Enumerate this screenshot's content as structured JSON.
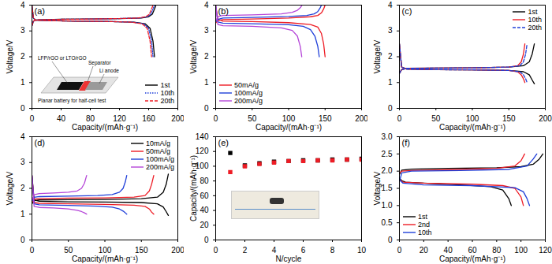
{
  "chart_data": [
    {
      "type": "line",
      "title": "(a)",
      "x_label": "Capacity/(mAh·g⁻¹)",
      "y_label": "Voltage/V",
      "xlim": [
        0,
        200
      ],
      "xticks": [
        0,
        40,
        80,
        120,
        160,
        200
      ],
      "ylim": [
        0,
        4
      ],
      "yticks": [
        0,
        1,
        2,
        3,
        4
      ],
      "legend": "bottom-right",
      "annotations": [
        "LFP/rGO or LTO/rGO",
        "Separator",
        "Li anode",
        "Planar battery for half-cell test"
      ],
      "series": [
        {
          "name": "1st",
          "color": "#000000",
          "line_style": "solid",
          "x": [
            0,
            2,
            5,
            10,
            40,
            80,
            120,
            150,
            160,
            165,
            168,
            170,
            null,
            0,
            2,
            5,
            20,
            60,
            100,
            140,
            155,
            162,
            166,
            168
          ],
          "values": [
            3.2,
            3.38,
            3.42,
            3.43,
            3.45,
            3.46,
            3.48,
            3.5,
            3.55,
            3.65,
            3.85,
            4.0,
            null,
            4.0,
            3.5,
            3.42,
            3.4,
            3.38,
            3.37,
            3.34,
            3.28,
            3.1,
            2.6,
            2.0
          ]
        },
        {
          "name": "10th",
          "color": "#1f3fd9",
          "line_style": "dotted",
          "x": [
            0,
            2,
            5,
            10,
            40,
            80,
            120,
            148,
            158,
            163,
            166,
            168,
            null,
            0,
            2,
            5,
            20,
            60,
            100,
            138,
            153,
            160,
            164,
            166
          ],
          "values": [
            3.2,
            3.38,
            3.42,
            3.43,
            3.45,
            3.46,
            3.48,
            3.5,
            3.55,
            3.65,
            3.85,
            4.0,
            null,
            4.0,
            3.5,
            3.42,
            3.4,
            3.38,
            3.37,
            3.34,
            3.28,
            3.1,
            2.6,
            2.0
          ]
        },
        {
          "name": "20th",
          "color": "#ee1c25",
          "line_style": "dashed",
          "x": [
            0,
            2,
            5,
            10,
            40,
            80,
            120,
            146,
            156,
            161,
            164,
            166,
            null,
            0,
            2,
            5,
            20,
            60,
            100,
            136,
            151,
            158,
            162,
            164
          ],
          "values": [
            3.2,
            3.38,
            3.42,
            3.43,
            3.45,
            3.46,
            3.48,
            3.5,
            3.55,
            3.65,
            3.85,
            4.0,
            null,
            4.0,
            3.5,
            3.42,
            3.4,
            3.38,
            3.37,
            3.34,
            3.28,
            3.1,
            2.6,
            2.0
          ]
        }
      ]
    },
    {
      "type": "line",
      "title": "(b)",
      "x_label": "Capacity/(mAh·g⁻¹)",
      "y_label": "Voltage/V",
      "xlim": [
        0,
        200
      ],
      "xticks": [
        0,
        50,
        100,
        150,
        200
      ],
      "ylim": [
        0,
        4
      ],
      "yticks": [
        0,
        1,
        2,
        3,
        4
      ],
      "legend": "bottom-left",
      "series": [
        {
          "name": "50mA/g",
          "color": "#ee1c25",
          "line_style": "solid",
          "x": [
            0,
            3,
            10,
            50,
            100,
            130,
            140,
            145,
            148,
            150,
            null,
            0,
            3,
            10,
            50,
            100,
            130,
            140,
            145,
            148,
            150
          ],
          "values": [
            3.3,
            3.4,
            3.44,
            3.46,
            3.5,
            3.55,
            3.6,
            3.7,
            3.85,
            4.0,
            null,
            4.0,
            3.45,
            3.38,
            3.36,
            3.32,
            3.25,
            3.15,
            2.9,
            2.5,
            2.0
          ]
        },
        {
          "name": "100mA/g",
          "color": "#1f3fd9",
          "line_style": "solid",
          "x": [
            0,
            3,
            10,
            50,
            100,
            125,
            135,
            140,
            143,
            145,
            null,
            0,
            3,
            10,
            50,
            100,
            120,
            130,
            136,
            140,
            142
          ],
          "values": [
            3.35,
            3.45,
            3.5,
            3.52,
            3.56,
            3.6,
            3.66,
            3.75,
            3.88,
            4.0,
            null,
            4.0,
            3.35,
            3.3,
            3.28,
            3.24,
            3.18,
            3.05,
            2.8,
            2.4,
            2.0
          ]
        },
        {
          "name": "200mA/g",
          "color": "#b545d8",
          "line_style": "solid",
          "x": [
            0,
            3,
            10,
            50,
            90,
            105,
            112,
            116,
            118,
            null,
            0,
            3,
            10,
            50,
            90,
            105,
            112,
            116,
            118
          ],
          "values": [
            3.4,
            3.55,
            3.6,
            3.62,
            3.66,
            3.72,
            3.8,
            3.9,
            3.98,
            null,
            4.0,
            3.25,
            3.2,
            3.18,
            3.12,
            3.02,
            2.8,
            2.4,
            2.0
          ]
        }
      ]
    },
    {
      "type": "line",
      "title": "(c)",
      "x_label": "Capacity/(mAh·g⁻¹)",
      "y_label": "Voltage/V",
      "xlim": [
        0,
        200
      ],
      "xticks": [
        0,
        50,
        100,
        150,
        200
      ],
      "ylim": [
        0,
        4
      ],
      "yticks": [
        0,
        1,
        2,
        3,
        4
      ],
      "legend": "top-right",
      "series": [
        {
          "name": "1st",
          "color": "#000000",
          "line_style": "solid",
          "x": [
            0,
            3,
            10,
            50,
            100,
            150,
            170,
            178,
            182,
            185,
            null,
            0,
            3,
            10,
            50,
            100,
            150,
            170,
            178,
            182,
            185
          ],
          "values": [
            1.35,
            1.5,
            1.55,
            1.56,
            1.57,
            1.6,
            1.65,
            1.8,
            2.1,
            2.5,
            null,
            2.5,
            1.6,
            1.52,
            1.5,
            1.49,
            1.47,
            1.42,
            1.3,
            1.1,
            0.95
          ]
        },
        {
          "name": "10th",
          "color": "#ee1c25",
          "line_style": "solid",
          "x": [
            0,
            3,
            10,
            50,
            100,
            150,
            162,
            167,
            170,
            172,
            null,
            0,
            3,
            10,
            50,
            100,
            150,
            162,
            167,
            170,
            172
          ],
          "values": [
            1.35,
            1.5,
            1.55,
            1.56,
            1.57,
            1.6,
            1.65,
            1.8,
            2.1,
            2.5,
            null,
            2.5,
            1.6,
            1.52,
            1.5,
            1.49,
            1.47,
            1.42,
            1.3,
            1.15,
            1.0
          ]
        },
        {
          "name": "20th",
          "color": "#1f3fd9",
          "line_style": "dashed",
          "x": [
            0,
            3,
            10,
            50,
            100,
            150,
            165,
            170,
            173,
            175,
            null,
            0,
            3,
            10,
            50,
            100,
            150,
            165,
            170,
            173,
            175
          ],
          "values": [
            1.35,
            1.5,
            1.55,
            1.56,
            1.57,
            1.6,
            1.65,
            1.8,
            2.1,
            2.5,
            null,
            2.5,
            1.6,
            1.52,
            1.5,
            1.49,
            1.47,
            1.42,
            1.3,
            1.15,
            1.0
          ]
        }
      ]
    },
    {
      "type": "line",
      "title": "(d)",
      "x_label": "Capacity/(mAh·g⁻¹)",
      "y_label": "Voltage/V",
      "xlim": [
        0,
        200
      ],
      "xticks": [
        0,
        50,
        100,
        150,
        200
      ],
      "ylim": [
        0,
        4
      ],
      "yticks": [
        0,
        1,
        2,
        3,
        4
      ],
      "legend": "top-right",
      "series": [
        {
          "name": "10mA/g",
          "color": "#000000",
          "line_style": "solid",
          "x": [
            0,
            3,
            10,
            50,
            100,
            150,
            172,
            180,
            184,
            187,
            null,
            0,
            3,
            10,
            50,
            100,
            150,
            172,
            180,
            184,
            187
          ],
          "values": [
            1.4,
            1.52,
            1.55,
            1.56,
            1.57,
            1.6,
            1.66,
            1.85,
            2.15,
            2.55,
            null,
            2.5,
            1.55,
            1.5,
            1.48,
            1.47,
            1.45,
            1.4,
            1.28,
            1.1,
            0.95
          ]
        },
        {
          "name": "50mA/g",
          "color": "#ee1c25",
          "line_style": "solid",
          "x": [
            0,
            3,
            10,
            50,
            100,
            140,
            155,
            161,
            164,
            167,
            null,
            0,
            3,
            10,
            50,
            100,
            140,
            155,
            161,
            164,
            167
          ],
          "values": [
            1.45,
            1.58,
            1.6,
            1.62,
            1.63,
            1.66,
            1.72,
            1.9,
            2.15,
            2.5,
            null,
            2.5,
            1.45,
            1.42,
            1.4,
            1.38,
            1.35,
            1.3,
            1.2,
            1.08,
            1.0
          ]
        },
        {
          "name": "100mA/g",
          "color": "#1f3fd9",
          "line_style": "solid",
          "x": [
            0,
            3,
            10,
            50,
            90,
            110,
            120,
            125,
            128,
            130,
            null,
            0,
            3,
            10,
            50,
            90,
            110,
            120,
            125,
            128,
            130
          ],
          "values": [
            1.5,
            1.65,
            1.68,
            1.7,
            1.72,
            1.76,
            1.85,
            2.0,
            2.25,
            2.5,
            null,
            2.5,
            1.4,
            1.36,
            1.34,
            1.31,
            1.27,
            1.2,
            1.12,
            1.05,
            1.0
          ]
        },
        {
          "name": "200mA/g",
          "color": "#b545d8",
          "line_style": "solid",
          "x": [
            0,
            3,
            10,
            30,
            50,
            62,
            68,
            72,
            74,
            75,
            null,
            0,
            3,
            10,
            30,
            50,
            62,
            68,
            72,
            74,
            75
          ],
          "values": [
            1.55,
            1.75,
            1.8,
            1.82,
            1.85,
            1.9,
            2.0,
            2.2,
            2.4,
            2.5,
            null,
            2.5,
            1.3,
            1.26,
            1.24,
            1.2,
            1.15,
            1.1,
            1.05,
            1.02,
            1.0
          ]
        }
      ]
    },
    {
      "type": "scatter",
      "title": "(e)",
      "x_label": "N/cycle",
      "y_label": "Capacity/(mAh·g⁻¹)",
      "xlim": [
        0,
        10
      ],
      "xticks": [
        0,
        2,
        4,
        6,
        8,
        10
      ],
      "ylim": [
        0,
        140
      ],
      "yticks": [
        0,
        20,
        40,
        60,
        80,
        100,
        120,
        140
      ],
      "marker": "square",
      "x": [
        1,
        2,
        3,
        4,
        5,
        6,
        7,
        8,
        9,
        10
      ],
      "series": [
        {
          "color": "#000000",
          "values": [
            118,
            101,
            104,
            106,
            107,
            108,
            108,
            109,
            109,
            110
          ]
        },
        {
          "color": "#ee1c25",
          "values": [
            92,
            100,
            103,
            105,
            107,
            107,
            108,
            108,
            109,
            109
          ]
        }
      ]
    },
    {
      "type": "line",
      "title": "(f)",
      "x_label": "Capacity/(mAh·g⁻¹)",
      "y_label": "Voltage/V",
      "xlim": [
        0,
        120
      ],
      "xticks": [
        0,
        20,
        40,
        60,
        80,
        100,
        120
      ],
      "ylim": [
        0,
        3
      ],
      "yticks": [
        0,
        0.5,
        {
          "value": 1,
          "label": "1.0"
        },
        1.5,
        {
          "value": 2,
          "label": "2.0"
        },
        2.5,
        {
          "value": 3,
          "label": "3.0"
        }
      ],
      "legend": "bottom-left",
      "series": [
        {
          "name": "1st",
          "color": "#000000",
          "line_style": "solid",
          "x": [
            0,
            2,
            10,
            40,
            80,
            100,
            110,
            115,
            118,
            null,
            0,
            2,
            5,
            20,
            50,
            75,
            85,
            90,
            92
          ],
          "values": [
            1.9,
            2.03,
            2.06,
            2.08,
            2.1,
            2.13,
            2.2,
            2.35,
            2.5,
            null,
            1.8,
            1.72,
            1.68,
            1.65,
            1.6,
            1.55,
            1.45,
            1.2,
            1.0
          ]
        },
        {
          "name": "2nd",
          "color": "#ee1c25",
          "line_style": "solid",
          "x": [
            0,
            2,
            10,
            50,
            80,
            95,
            100,
            103,
            null,
            0,
            3,
            20,
            60,
            85,
            95,
            100,
            102
          ],
          "values": [
            1.95,
            2.0,
            2.02,
            2.05,
            2.08,
            2.15,
            2.3,
            2.5,
            null,
            1.75,
            1.68,
            1.65,
            1.62,
            1.58,
            1.5,
            1.25,
            1.0
          ]
        },
        {
          "name": "10th",
          "color": "#1f3fd9",
          "line_style": "solid",
          "x": [
            0,
            2,
            10,
            50,
            90,
            105,
            110,
            113,
            null,
            0,
            3,
            20,
            60,
            95,
            102,
            105,
            107
          ],
          "values": [
            1.7,
            1.95,
            2.0,
            2.02,
            2.05,
            2.15,
            2.35,
            2.5,
            null,
            1.75,
            1.65,
            1.6,
            1.58,
            1.52,
            1.4,
            1.2,
            1.0
          ]
        }
      ]
    }
  ]
}
